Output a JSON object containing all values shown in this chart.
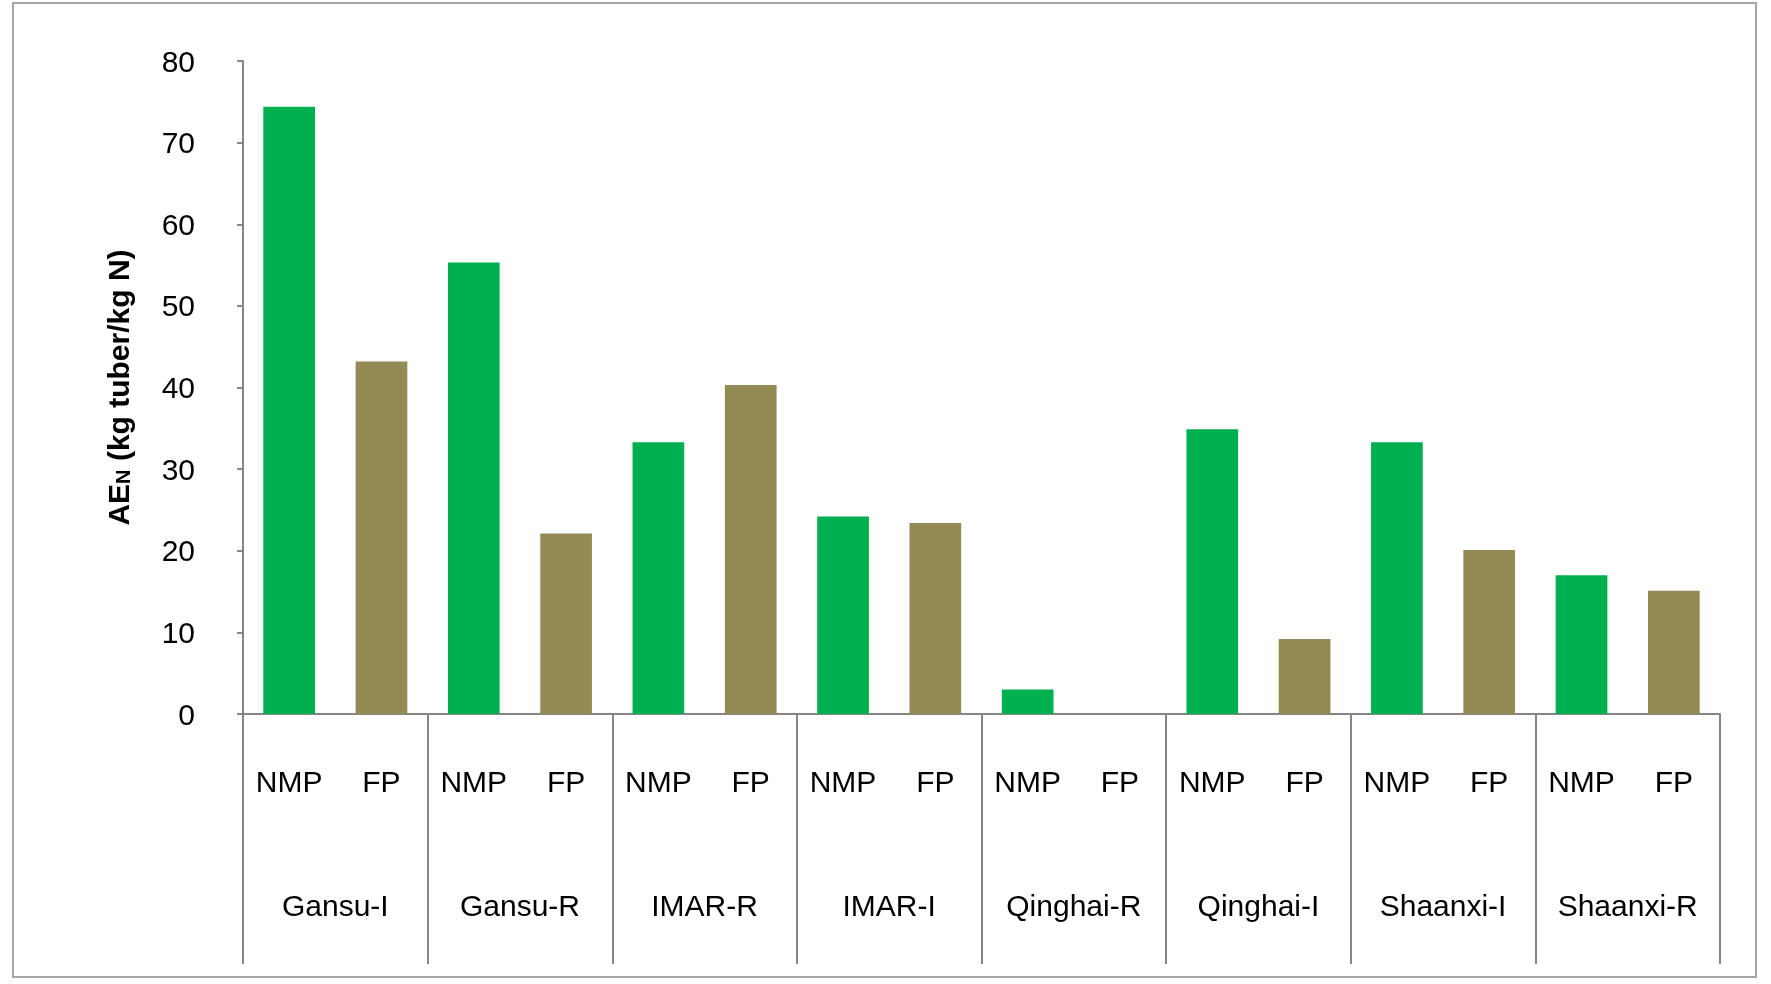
{
  "chart_data": {
    "type": "bar",
    "ylabel": "AE$_{N}$ (kg tuber/kg N)",
    "categories": [
      "NMP",
      "FP",
      "NMP",
      "FP",
      "NMP",
      "FP",
      "NMP",
      "FP",
      "NMP",
      "FP",
      "NMP",
      "FP",
      "NMP",
      "FP",
      "NMP",
      "FP"
    ],
    "annotations": [
      "Gansu-I",
      "Gansu-R",
      "IMAR-R",
      "IMAR-I",
      "Qinghai-R",
      "Qinghai-I",
      "Shaanxi-I",
      "Shaanxi-R"
    ],
    "values": [
      74.4,
      43.2,
      55.3,
      22.1,
      33.3,
      40.3,
      24.2,
      23.4,
      3.0,
      0,
      34.9,
      9.2,
      33.3,
      20.1,
      17.0,
      15.1
    ],
    "colors": [
      "#00b050",
      "#948a54",
      "#00b050",
      "#948a54",
      "#00b050",
      "#948a54",
      "#00b050",
      "#948a54",
      "#00b050",
      "#948a54",
      "#00b050",
      "#948a54",
      "#00b050",
      "#948a54",
      "#00b050",
      "#948a54"
    ],
    "ylim": [
      0,
      80
    ],
    "yticks": [
      0,
      10,
      20,
      30,
      40,
      50,
      60,
      70,
      80
    ],
    "grid": false
  }
}
